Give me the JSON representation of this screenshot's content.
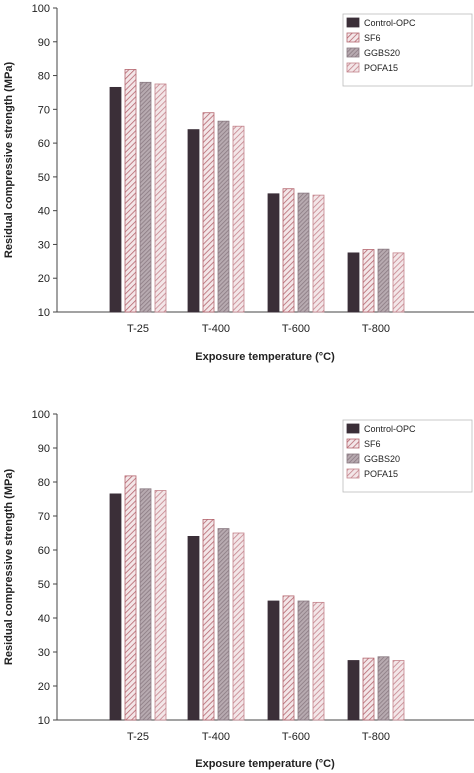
{
  "chart_data": [
    {
      "type": "bar",
      "title": "",
      "xlabel": "Exposure temperature (°C)",
      "ylabel": "Residual compressive strength (MPa)",
      "ylim": [
        10,
        100
      ],
      "yticks": [
        10,
        20,
        30,
        40,
        50,
        60,
        70,
        80,
        90,
        100
      ],
      "categories": [
        "T-25",
        "T-400",
        "T-600",
        "T-800"
      ],
      "legend_position": "top-right",
      "series": [
        {
          "name": "Control-OPC",
          "values": [
            76.5,
            64.0,
            45.0,
            27.5
          ],
          "color": "#3b2f38",
          "pattern": "solid"
        },
        {
          "name": "SF6",
          "values": [
            81.8,
            69.0,
            46.5,
            28.5
          ],
          "color": "#b5666f",
          "pattern": "hatch"
        },
        {
          "name": "GGBS20",
          "values": [
            78.0,
            66.5,
            45.2,
            28.6
          ],
          "color": "#8a7a82",
          "pattern": "hatch-dense"
        },
        {
          "name": "POFA15",
          "values": [
            77.5,
            65.0,
            44.6,
            27.5
          ],
          "color": "#c4848c",
          "pattern": "hatch"
        }
      ]
    },
    {
      "type": "bar",
      "title": "",
      "xlabel": "Exposure temperature (°C)",
      "ylabel": "Residual compressive strength (MPa)",
      "ylim": [
        10,
        100
      ],
      "yticks": [
        10,
        20,
        30,
        40,
        50,
        60,
        70,
        80,
        90,
        100
      ],
      "categories": [
        "T-25",
        "T-400",
        "T-600",
        "T-800"
      ],
      "legend_position": "top-right",
      "series": [
        {
          "name": "Control-OPC",
          "values": [
            76.5,
            64.0,
            45.0,
            27.5
          ],
          "color": "#3b2f38",
          "pattern": "solid"
        },
        {
          "name": "SF6",
          "values": [
            81.8,
            69.0,
            46.5,
            28.2
          ],
          "color": "#b5666f",
          "pattern": "hatch"
        },
        {
          "name": "GGBS20",
          "values": [
            78.0,
            66.3,
            45.0,
            28.6
          ],
          "color": "#8a7a82",
          "pattern": "hatch-dense"
        },
        {
          "name": "POFA15",
          "values": [
            77.5,
            65.0,
            44.6,
            27.5
          ],
          "color": "#c4848c",
          "pattern": "hatch"
        }
      ]
    }
  ]
}
